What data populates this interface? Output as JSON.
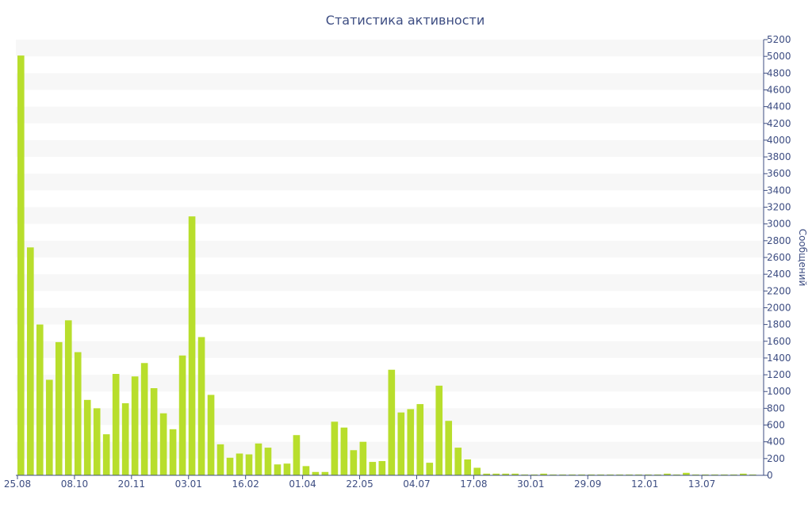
{
  "chart_data": {
    "type": "bar",
    "title": "Статистика активности",
    "xlabel": "",
    "ylabel": "Сообщений",
    "ylim": [
      0,
      5200
    ],
    "yticks": [
      0,
      200,
      400,
      600,
      800,
      1000,
      1200,
      1400,
      1600,
      1800,
      2000,
      2200,
      2400,
      2600,
      2800,
      3000,
      3200,
      3400,
      3600,
      3800,
      4000,
      4200,
      4400,
      4600,
      4800,
      5000,
      5200
    ],
    "y_axis_position": "right",
    "grid": "alternating horizontal bands",
    "legend": "none",
    "x_tick_labels": [
      {
        "index": 0,
        "label": "25.08"
      },
      {
        "index": 6,
        "label": "08.10"
      },
      {
        "index": 12,
        "label": "20.11"
      },
      {
        "index": 18,
        "label": "03.01"
      },
      {
        "index": 24,
        "label": "16.02"
      },
      {
        "index": 30,
        "label": "01.04"
      },
      {
        "index": 36,
        "label": "22.05"
      },
      {
        "index": 42,
        "label": "04.07"
      },
      {
        "index": 48,
        "label": "17.08"
      },
      {
        "index": 54,
        "label": "30.01"
      },
      {
        "index": 60,
        "label": "29.09"
      },
      {
        "index": 66,
        "label": "12.01"
      },
      {
        "index": 72,
        "label": "13.07"
      }
    ],
    "values": [
      5010,
      2720,
      1800,
      1140,
      1590,
      1850,
      1470,
      900,
      800,
      490,
      1210,
      860,
      1180,
      1340,
      1040,
      740,
      550,
      1430,
      3090,
      1650,
      960,
      370,
      210,
      260,
      250,
      380,
      330,
      130,
      140,
      480,
      110,
      40,
      40,
      640,
      570,
      300,
      400,
      160,
      170,
      1260,
      750,
      790,
      850,
      150,
      1070,
      650,
      330,
      190,
      90,
      20,
      20,
      20,
      20,
      10,
      10,
      20,
      10,
      10,
      10,
      10,
      10,
      10,
      10,
      10,
      10,
      10,
      10,
      10,
      20,
      10,
      30,
      10,
      10,
      10,
      10,
      10,
      20,
      10
    ],
    "colors": {
      "bar": "#b8de2c",
      "band": "#f7f7f7",
      "axis": "#3d4d82",
      "text": "#3d4d82"
    }
  }
}
